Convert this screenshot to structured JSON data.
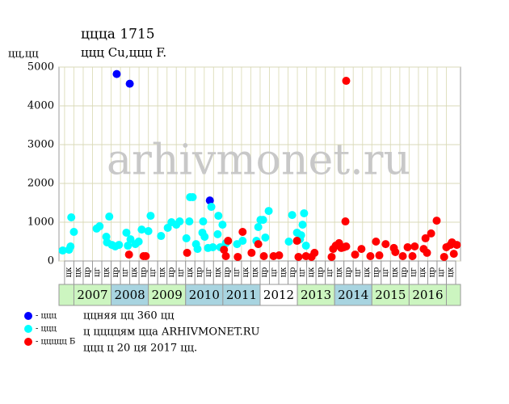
{
  "chart_data": {
    "type": "scatter",
    "title": "ццца 1715",
    "subtitle": "ццц Cu,ццц F.",
    "y_label": "цц,цц",
    "watermark": "arhivmonet.ru",
    "notes": [
      "ццняя цц 360 цц",
      "ц ццццям цца ARHIVMONET.RU",
      "ццц ц 20 ця 2017 цц."
    ],
    "xlim": [
      2006.6,
      2017.38
    ],
    "ylim": [
      0,
      5000
    ],
    "yticks": [
      0,
      1000,
      2000,
      3000,
      4000,
      5000
    ],
    "grid": true,
    "years": [
      "2007",
      "2008",
      "2009",
      "2010",
      "2011",
      "2012",
      "2013",
      "2014",
      "2015",
      "2016"
    ],
    "year_starts": [
      2007,
      2008,
      2009,
      2010,
      2011,
      2012,
      2013,
      2014,
      2015,
      2016
    ],
    "year_colors": [
      "#ccf5c0",
      "#a8d4e0",
      "#ccf5c0",
      "#a8d4e0",
      "#a8d4e0",
      "#ffffff",
      "#ccf5c0",
      "#a8d4e0",
      "#ccf5c0",
      "#ccf5c0"
    ],
    "column_start": 2006.75,
    "column_labels": [
      "цк",
      "цк",
      "цр",
      "цг",
      "цк",
      "цр",
      "цг",
      "цк",
      "цр",
      "цг",
      "цк",
      "цр",
      "цг",
      "цк",
      "цр",
      "цг",
      "цк",
      "цр",
      "цг",
      "цк",
      "цк",
      "цр",
      "цг",
      "цк",
      "цр",
      "цг",
      "цк",
      "цр",
      "цг",
      "цк",
      "цр",
      "цг",
      "цк",
      "цр",
      "цг",
      "цк",
      "цр",
      "цг",
      "цк",
      "цр",
      "цг",
      "цк"
    ],
    "series": [
      {
        "name": "- ццц",
        "color": "#0000ff",
        "x": [
          2008.15,
          2008.5,
          2010.65
        ],
        "values": [
          4820,
          4570,
          1560
        ]
      },
      {
        "name": "- ццц",
        "color": "#00ffff",
        "x": [
          2006.7,
          2006.87,
          2006.91,
          2006.93,
          2007.0,
          2007.61,
          2007.69,
          2007.95,
          2007.87,
          2007.89,
          2008.02,
          2008.11,
          2008.21,
          2008.41,
          2008.45,
          2008.52,
          2008.65,
          2008.74,
          2008.82,
          2009.0,
          2009.06,
          2009.34,
          2009.52,
          2009.62,
          2009.75,
          2009.84,
          2010.02,
          2010.1,
          2010.12,
          2010.19,
          2010.28,
          2010.32,
          2010.45,
          2010.47,
          2010.51,
          2010.6,
          2010.69,
          2010.73,
          2010.86,
          2010.88,
          2010.93,
          2010.99,
          2011.08,
          2011.38,
          2011.53,
          2011.9,
          2011.95,
          2012.01,
          2012.08,
          2012.14,
          2012.23,
          2012.77,
          2012.86,
          2012.99,
          2013.07,
          2013.1,
          2013.14,
          2013.18,
          2013.23
        ],
        "values": [
          270,
          290,
          375,
          1125,
          750,
          835,
          895,
          1145,
          625,
          480,
          415,
          375,
          415,
          730,
          395,
          560,
          435,
          500,
          810,
          770,
          1165,
          645,
          855,
          1000,
          935,
          1020,
          585,
          1020,
          1645,
          1645,
          435,
          310,
          730,
          1020,
          625,
          335,
          1395,
          355,
          690,
          1165,
          355,
          935,
          460,
          435,
          520,
          520,
          875,
          1060,
          1060,
          605,
          1290,
          500,
          1185,
          730,
          560,
          665,
          935,
          1230,
          395
        ]
      },
      {
        "name": "- ццццц Б",
        "color": "#ff0000",
        "x": [
          2008.48,
          2008.87,
          2008.93,
          2010.04,
          2011.03,
          2011.08,
          2011.14,
          2011.4,
          2011.53,
          2011.77,
          2011.95,
          2012.1,
          2012.36,
          2012.51,
          2012.99,
          2013.03,
          2013.23,
          2013.38,
          2013.46,
          2013.92,
          2013.96,
          2014.03,
          2014.12,
          2014.18,
          2014.25,
          2014.31,
          2014.29,
          2014.31,
          2014.55,
          2014.72,
          2014.96,
          2015.11,
          2015.2,
          2015.37,
          2015.59,
          2015.63,
          2015.83,
          2015.96,
          2016.09,
          2016.15,
          2016.39,
          2016.44,
          2016.48,
          2016.59,
          2016.74,
          2016.94,
          2017.0,
          2017.11,
          2017.15,
          2017.2,
          2017.28
        ],
        "values": [
          165,
          125,
          125,
          210,
          290,
          125,
          520,
          105,
          750,
          210,
          435,
          125,
          125,
          145,
          520,
          105,
          125,
          105,
          210,
          105,
          310,
          395,
          460,
          335,
          355,
          375,
          1020,
          4645,
          165,
          310,
          125,
          500,
          145,
          435,
          335,
          230,
          125,
          355,
          125,
          375,
          310,
          585,
          210,
          710,
          1040,
          105,
          355,
          415,
          480,
          185,
          415
        ]
      }
    ]
  }
}
